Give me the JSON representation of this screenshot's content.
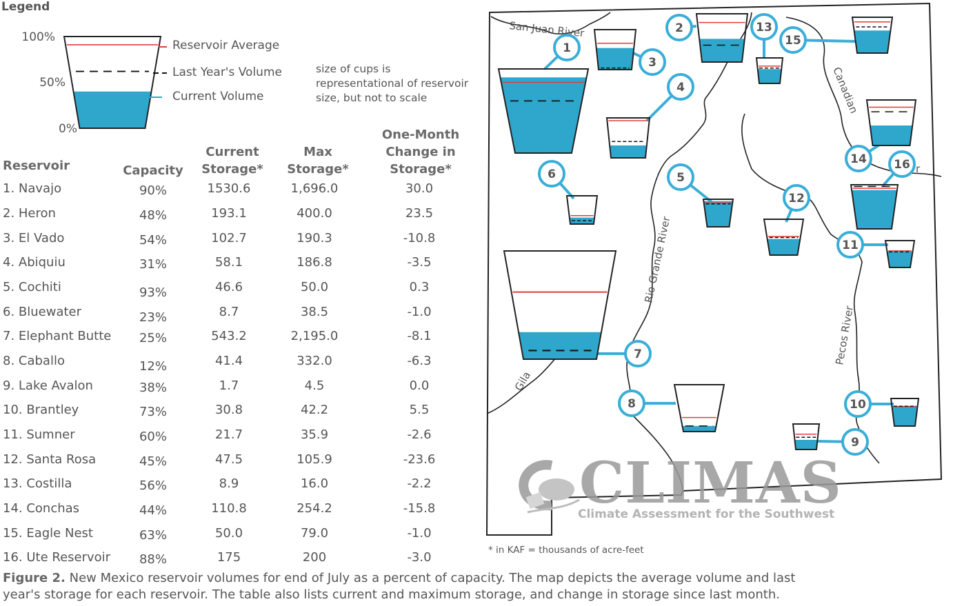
{
  "legend": {
    "title": "Legend",
    "pct_100": "100%",
    "pct_50": "50%",
    "pct_0": "0%",
    "reservoir_average": "Reservoir Average",
    "last_year": "Last Year's Volume",
    "current": "Current Volume",
    "note": "size of cups is representational of reservoir size, but not to scale",
    "sample_current": 0.4,
    "sample_last": 0.62,
    "sample_avg": 0.91
  },
  "colors": {
    "water": "#2fa7cc",
    "average_line": "#e33b3b",
    "marker": "#3aaed8",
    "outline": "#222222"
  },
  "table": {
    "headers": {
      "reservoir": "Reservoir",
      "capacity": "Capacity",
      "current_1": "Current",
      "current_2": "Storage*",
      "max_1": "Max",
      "max_2": "Storage*",
      "change_1": "One-Month",
      "change_2": "Change in",
      "change_3": "Storage*"
    },
    "rows": [
      {
        "name": "1. Navajo",
        "capacity": "90%",
        "current": "1530.6",
        "max": "1,696.0",
        "change": "30.0"
      },
      {
        "name": "2. Heron",
        "capacity": "48%",
        "current": "193.1",
        "max": "400.0",
        "change": "23.5"
      },
      {
        "name": "3. El Vado",
        "capacity": "54%",
        "current": "102.7",
        "max": "190.3",
        "change": "-10.8"
      },
      {
        "name": "4. Abiquiu",
        "capacity": "31%",
        "current": "58.1",
        "max": "186.8",
        "change": "-3.5"
      },
      {
        "name": "5. Cochiti",
        "capacity": "93%",
        "current": "46.6",
        "max": "50.0",
        "change": "0.3"
      },
      {
        "name": "6. Bluewater",
        "capacity": "23%",
        "current": "8.7",
        "max": "38.5",
        "change": "-1.0"
      },
      {
        "name": "7. Elephant Butte",
        "capacity": "25%",
        "current": "543.2",
        "max": "2,195.0",
        "change": "-8.1"
      },
      {
        "name": "8. Caballo",
        "capacity": "12%",
        "current": "41.4",
        "max": "332.0",
        "change": "-6.3"
      },
      {
        "name": "9. Lake Avalon",
        "capacity": "38%",
        "current": "1.7",
        "max": "4.5",
        "change": "0.0"
      },
      {
        "name": "10. Brantley",
        "capacity": "73%",
        "current": "30.8",
        "max": "42.2",
        "change": "5.5"
      },
      {
        "name": "11. Sumner",
        "capacity": "60%",
        "current": "21.7",
        "max": "35.9",
        "change": "-2.6"
      },
      {
        "name": "12. Santa Rosa",
        "capacity": "45%",
        "current": "47.5",
        "max": "105.9",
        "change": "-23.6"
      },
      {
        "name": "13. Costilla",
        "capacity": "56%",
        "current": "8.9",
        "max": "16.0",
        "change": "-2.2"
      },
      {
        "name": "14. Conchas",
        "capacity": "44%",
        "current": "110.8",
        "max": "254.2",
        "change": "-15.8"
      },
      {
        "name": "15. Eagle Nest",
        "capacity": "63%",
        "current": "50.0",
        "max": "79.0",
        "change": "-1.0"
      },
      {
        "name": "16. Ute Reservoir",
        "capacity": "88%",
        "current": "175",
        "max": "200",
        "change": "-3.0"
      }
    ]
  },
  "map": {
    "rivers": {
      "san_juan": "San Juan River",
      "rio_grande": "Rio Grande River",
      "canadian": "Canadian",
      "pecos": "Pecos River",
      "gila": "Gila",
      "canadian_tail": "r"
    },
    "reservoirs": [
      {
        "id": "1",
        "current": 0.9,
        "last": 0.62,
        "avg": 0.84
      },
      {
        "id": "2",
        "current": 0.48,
        "last": 0.35,
        "avg": 0.82
      },
      {
        "id": "3",
        "current": 0.54,
        "last": 0.04,
        "avg": 0.66
      },
      {
        "id": "4",
        "current": 0.31,
        "last": 0.41,
        "avg": 0.93
      },
      {
        "id": "5",
        "current": 0.93,
        "last": 0.83,
        "avg": 0.87
      },
      {
        "id": "6",
        "current": 0.23,
        "last": 0.12,
        "avg": 0.3
      },
      {
        "id": "7",
        "current": 0.25,
        "last": 0.08,
        "avg": 0.62
      },
      {
        "id": "8",
        "current": 0.12,
        "last": 0.12,
        "avg": 0.3
      },
      {
        "id": "9",
        "current": 0.38,
        "last": 0.48,
        "avg": 0.6
      },
      {
        "id": "10",
        "current": 0.73,
        "last": 0.72,
        "avg": 0.7
      },
      {
        "id": "11",
        "current": 0.6,
        "last": 0.58,
        "avg": 0.62
      },
      {
        "id": "12",
        "current": 0.45,
        "last": 0.49,
        "avg": 0.52
      },
      {
        "id": "13",
        "current": 0.56,
        "last": 0.6,
        "avg": 0.68
      },
      {
        "id": "14",
        "current": 0.44,
        "last": 0.74,
        "avg": 0.84
      },
      {
        "id": "15",
        "current": 0.63,
        "last": 0.73,
        "avg": 0.87
      },
      {
        "id": "16",
        "current": 0.88,
        "last": 0.96,
        "avg": 0.92
      }
    ]
  },
  "footnote": "* in KAF = thousands of acre-feet",
  "caption": {
    "bold": "Figure 2.",
    "text": " New Mexico reservoir volumes for end of July as a percent of capacity. The map depicts the average volume and last year's storage for each reservoir. The table also lists current and maximum storage, and change in storage since last month."
  },
  "logo": {
    "name": "CLIMAS",
    "subtitle": "Climate Assessment for the Southwest"
  }
}
